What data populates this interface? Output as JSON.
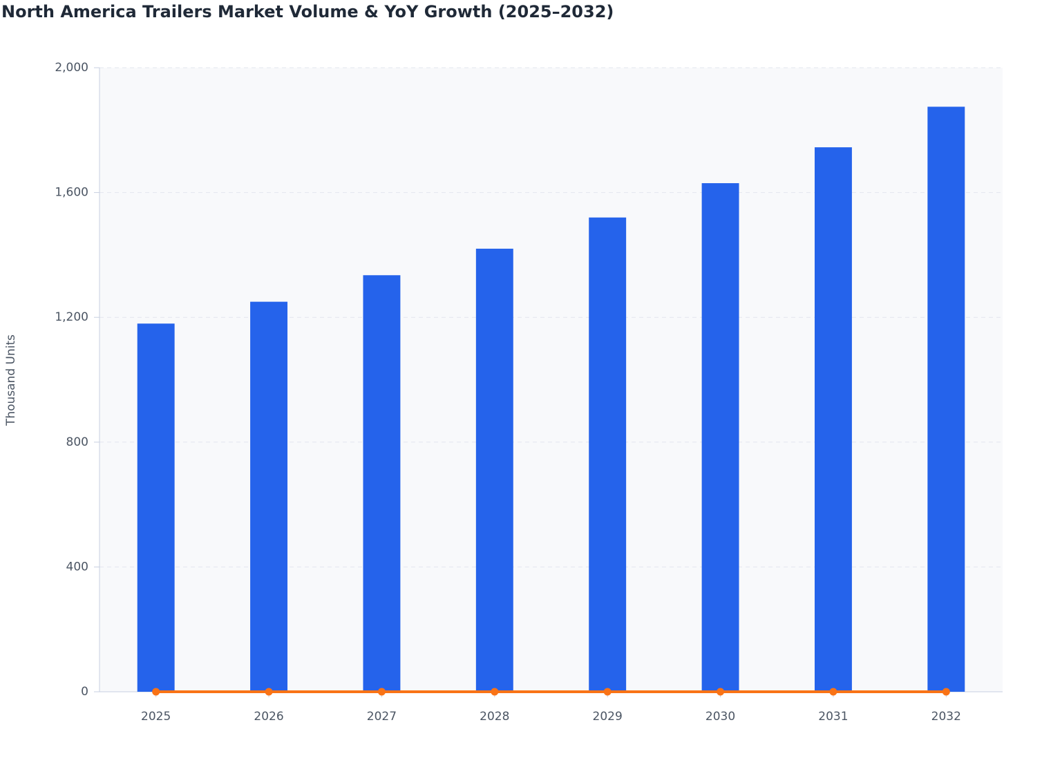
{
  "chart_data": {
    "type": "bar",
    "title": "North America Trailers Market Volume & YoY Growth (2025–2032)",
    "y_label": "Thousand Units",
    "categories": [
      "2025",
      "2026",
      "2027",
      "2028",
      "2029",
      "2030",
      "2031",
      "2032"
    ],
    "series": [
      {
        "type": "bar",
        "color": "#2563eb",
        "values": [
          1180,
          1250,
          1335,
          1420,
          1520,
          1630,
          1745,
          1875
        ]
      },
      {
        "type": "line",
        "color": "#f97316",
        "values": [
          0,
          0,
          0,
          0,
          0,
          0,
          0,
          0
        ]
      }
    ],
    "ylim": [
      0,
      2000
    ],
    "yticks": [
      0,
      400,
      800,
      {
        "value": 1200,
        "label": "1,200"
      },
      {
        "value": 1600,
        "label": "1,600"
      },
      {
        "value": 2000,
        "label": "2,000"
      }
    ],
    "grid": true
  }
}
